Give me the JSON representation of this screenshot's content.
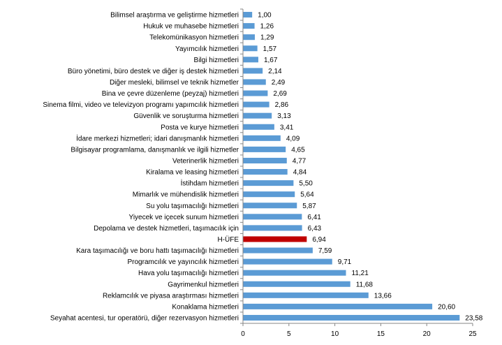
{
  "chart_data": {
    "type": "bar",
    "orientation": "horizontal",
    "title": "",
    "xlabel": "",
    "ylabel": "",
    "xlim": [
      0,
      25
    ],
    "xticks": [
      0,
      5,
      10,
      15,
      20,
      25
    ],
    "grid": false,
    "legend": "none",
    "colors": {
      "default": "#5b9bd5",
      "highlight": "#c00000",
      "axis": "#868686"
    },
    "highlight_category": "H-ÜFE",
    "categories": [
      "Bilimsel araştırma ve geliştirme hizmetleri",
      "Hukuk ve muhasebe hizmetleri",
      "Telekomünikasyon hizmetleri",
      "Yayımcılık hizmetleri",
      "Bilgi hizmetleri",
      "Büro yönetimi, büro destek ve diğer iş destek hizmetleri",
      "Diğer mesleki, bilimsel ve teknik hizmetler",
      "Bina ve çevre düzenleme (peyzaj) hizmetleri",
      "Sinema filmi, video ve televizyon programı yapımcılık hizmetleri",
      "Güvenlik ve soruşturma hizmetleri",
      "Posta ve kurye hizmetleri",
      "İdare merkezi hizmetleri; idari danışmanlık hizmetleri",
      "Bilgisayar programlama, danışmanlık ve ilgili hizmetler",
      "Veterinerlik hizmetleri",
      "Kiralama ve leasing hizmetleri",
      "İstihdam hizmetleri",
      "Mimarlık ve mühendislik hizmetleri",
      "Su yolu taşımacılığı hizmetleri",
      "Yiyecek ve içecek sunum hizmetleri",
      "Depolama ve destek hizmetleri, taşımacılık için",
      "H-ÜFE",
      "Kara taşımacılığı ve boru hattı taşımacılığı hizmetleri",
      "Programcılık ve yayıncılık hizmetleri",
      "Hava yolu taşımacılığı hizmetleri",
      "Gayrimenkul hizmetleri",
      "Reklamcılık ve piyasa araştırması hizmetleri",
      "Konaklama hizmetleri",
      "Seyahat acentesi, tur operatörü, diğer rezervasyon hizmetleri"
    ],
    "values": [
      1.0,
      1.26,
      1.29,
      1.57,
      1.67,
      2.14,
      2.49,
      2.69,
      2.86,
      3.13,
      3.41,
      4.09,
      4.65,
      4.77,
      4.84,
      5.5,
      5.64,
      5.87,
      6.41,
      6.43,
      6.94,
      7.59,
      9.71,
      11.21,
      11.68,
      13.66,
      20.6,
      23.58
    ],
    "value_labels": [
      "1,00",
      "1,26",
      "1,29",
      "1,57",
      "1,67",
      "2,14",
      "2,49",
      "2,69",
      "2,86",
      "3,13",
      "3,41",
      "4,09",
      "4,65",
      "4,77",
      "4,84",
      "5,50",
      "5,64",
      "5,87",
      "6,41",
      "6,43",
      "6,94",
      "7,59",
      "9,71",
      "11,21",
      "11,68",
      "13,66",
      "20,60",
      "23,58"
    ]
  }
}
